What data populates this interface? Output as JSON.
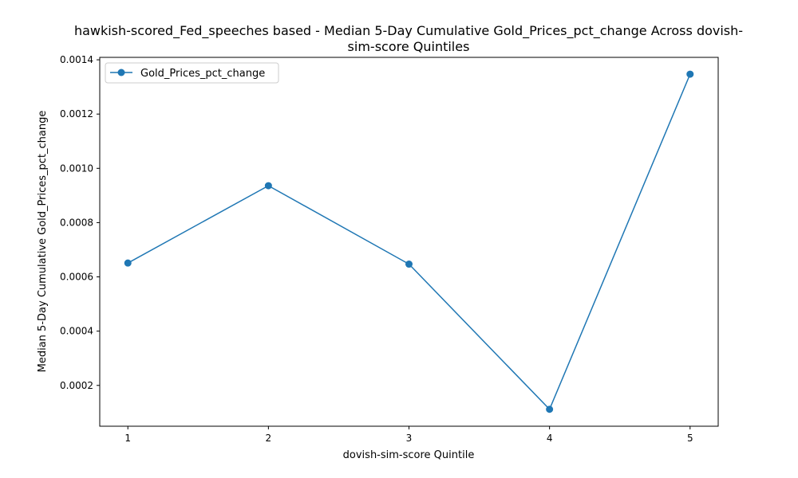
{
  "chart_data": {
    "type": "line",
    "title": "hawkish-scored_Fed_speeches based - Median 5-Day Cumulative Gold_Prices_pct_change Across dovish-sim-score Quintiles",
    "title_lines": [
      "hawkish-scored_Fed_speeches based - Median 5-Day Cumulative Gold_Prices_pct_change Across dovish-",
      "sim-score Quintiles"
    ],
    "xlabel": "dovish-sim-score Quintile",
    "ylabel": "Median 5-Day Cumulative Gold_Prices_pct_change",
    "x": [
      1,
      2,
      3,
      4,
      5
    ],
    "x_tick_labels": [
      "1",
      "2",
      "3",
      "4",
      "5"
    ],
    "xlim": [
      0.8,
      5.2
    ],
    "ylim": [
      4.96e-05,
      0.001409
    ],
    "y_ticks": [
      0.0002,
      0.0004,
      0.0006,
      0.0008,
      0.001,
      0.0012,
      0.0014
    ],
    "y_tick_labels": [
      "0.0002",
      "0.0004",
      "0.0006",
      "0.0008",
      "0.0010",
      "0.0012",
      "0.0014"
    ],
    "series": [
      {
        "name": "Gold_Prices_pct_change",
        "values": [
          0.000651,
          0.000936,
          0.000647,
          0.000112,
          0.001347
        ],
        "color": "#1f77b4",
        "marker": "circle"
      }
    ],
    "legend": {
      "position": "top-left"
    },
    "grid": false
  }
}
